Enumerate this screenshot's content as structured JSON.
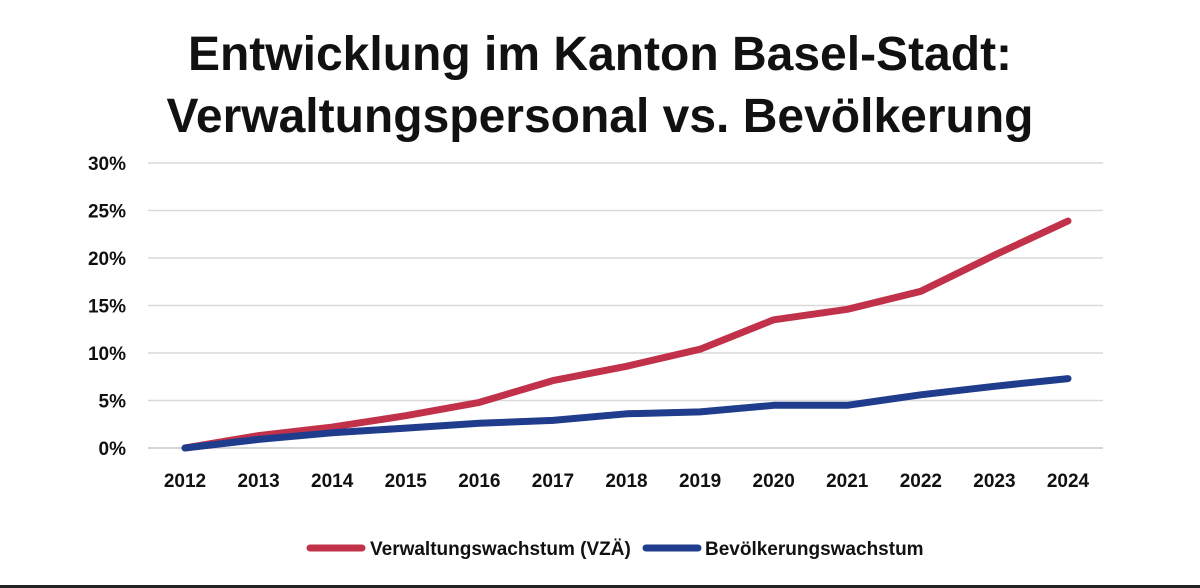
{
  "chart_data": {
    "type": "line",
    "title_lines": [
      "Entwicklung im Kanton Basel-Stadt:",
      "Verwaltungspersonal vs. Bevölkerung"
    ],
    "x": [
      "2012",
      "2013",
      "2014",
      "2015",
      "2016",
      "2017",
      "2018",
      "2019",
      "2020",
      "2021",
      "2022",
      "2023",
      "2024"
    ],
    "y_ticks": [
      "0%",
      "5%",
      "10%",
      "15%",
      "20%",
      "25%",
      "30%"
    ],
    "ylim": [
      0,
      30
    ],
    "grid": true,
    "legend_position": "bottom-center",
    "series": [
      {
        "name": "Verwaltungswachstum (VZÄ)",
        "color": "#c1324a",
        "values": [
          0,
          1.3,
          2.2,
          3.4,
          4.8,
          7.1,
          8.6,
          10.4,
          13.5,
          14.6,
          16.5,
          20.3,
          23.9
        ]
      },
      {
        "name": "Bevölkerungswachstum",
        "color": "#1f3d8c",
        "values": [
          0,
          0.9,
          1.6,
          2.1,
          2.6,
          2.9,
          3.6,
          3.8,
          4.5,
          4.5,
          5.6,
          6.5,
          7.3
        ]
      }
    ]
  }
}
